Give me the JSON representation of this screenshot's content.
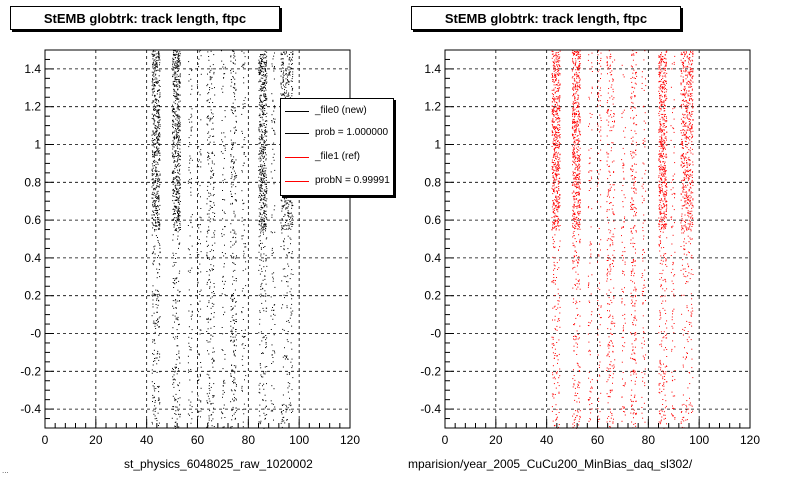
{
  "panels": [
    {
      "title": "StEMB globtrk: track length, ftpc",
      "xlabel": "st_physics_6048025_raw_1020002",
      "color": "#000000"
    },
    {
      "title": "StEMB globtrk: track length, ftpc",
      "xlabel": "mparision/year_2005_CuCu200_MinBias_daq_sl302/",
      "color": "#ff0000"
    }
  ],
  "legend": {
    "entries": [
      {
        "label": "_file0 (new)",
        "color": "#000000"
      },
      {
        "label": "prob = 1.000000",
        "color": "#000000"
      },
      {
        "label": "_file1 (ref)",
        "color": "#ff0000"
      },
      {
        "label": "probN = 0.99991",
        "color": "#ff0000"
      }
    ]
  },
  "footnote": "...",
  "chart_data": [
    {
      "type": "scatter",
      "title": "StEMB globtrk: track length, ftpc",
      "xlabel": "st_physics_6048025_raw_1020002",
      "ylabel": "",
      "xlim": [
        0,
        120
      ],
      "ylim": [
        -0.5,
        1.5
      ],
      "grid": true,
      "x_ticks": [
        0,
        20,
        40,
        60,
        80,
        100,
        120
      ],
      "y_ticks": [
        "-0.4",
        "-0.2",
        "-0",
        "0.2",
        "0.4",
        "0.6",
        "0.8",
        "1",
        "1.2",
        "1.4"
      ],
      "y_tick_values": [
        -0.4,
        -0.2,
        0,
        0.2,
        0.4,
        0.6,
        0.8,
        1.0,
        1.2,
        1.4
      ],
      "series": [
        {
          "bands": [
            {
              "x": 43.5,
              "width": 2.0,
              "density": "high"
            },
            {
              "x": 51.5,
              "width": 2.0,
              "density": "high"
            },
            {
              "x": 57.0,
              "width": 1.0,
              "density": "low"
            },
            {
              "x": 60.5,
              "width": 1.0,
              "density": "low"
            },
            {
              "x": 65.0,
              "width": 2.0,
              "density": "medium"
            },
            {
              "x": 70.0,
              "width": 1.0,
              "density": "low"
            },
            {
              "x": 74.0,
              "width": 1.5,
              "density": "medium"
            },
            {
              "x": 78.0,
              "width": 1.0,
              "density": "low"
            },
            {
              "x": 85.5,
              "width": 2.0,
              "density": "high"
            },
            {
              "x": 89.5,
              "width": 1.0,
              "density": "low"
            },
            {
              "x": 95.0,
              "width": 3.0,
              "density": "high"
            }
          ]
        }
      ]
    },
    {
      "type": "scatter",
      "title": "StEMB globtrk: track length, ftpc",
      "xlabel": "mparision/year_2005_CuCu200_MinBias_daq_sl302/",
      "ylabel": "",
      "xlim": [
        0,
        120
      ],
      "ylim": [
        -0.5,
        1.5
      ],
      "grid": true,
      "x_ticks": [
        0,
        20,
        40,
        60,
        80,
        100,
        120
      ],
      "y_ticks": [
        "-0.4",
        "-0.2",
        "-0",
        "0.2",
        "0.4",
        "0.6",
        "0.8",
        "1",
        "1.2",
        "1.4"
      ],
      "y_tick_values": [
        -0.4,
        -0.2,
        0,
        0.2,
        0.4,
        0.6,
        0.8,
        1.0,
        1.2,
        1.4
      ],
      "series": [
        {
          "bands": [
            {
              "x": 43.5,
              "width": 2.0,
              "density": "high"
            },
            {
              "x": 51.5,
              "width": 2.0,
              "density": "high"
            },
            {
              "x": 57.0,
              "width": 1.0,
              "density": "low"
            },
            {
              "x": 60.5,
              "width": 1.0,
              "density": "low"
            },
            {
              "x": 65.0,
              "width": 2.0,
              "density": "medium"
            },
            {
              "x": 70.0,
              "width": 1.0,
              "density": "low"
            },
            {
              "x": 74.0,
              "width": 1.5,
              "density": "medium"
            },
            {
              "x": 78.0,
              "width": 1.0,
              "density": "low"
            },
            {
              "x": 85.5,
              "width": 2.0,
              "density": "high"
            },
            {
              "x": 89.5,
              "width": 1.0,
              "density": "low"
            },
            {
              "x": 95.0,
              "width": 3.0,
              "density": "high"
            }
          ]
        }
      ]
    }
  ]
}
